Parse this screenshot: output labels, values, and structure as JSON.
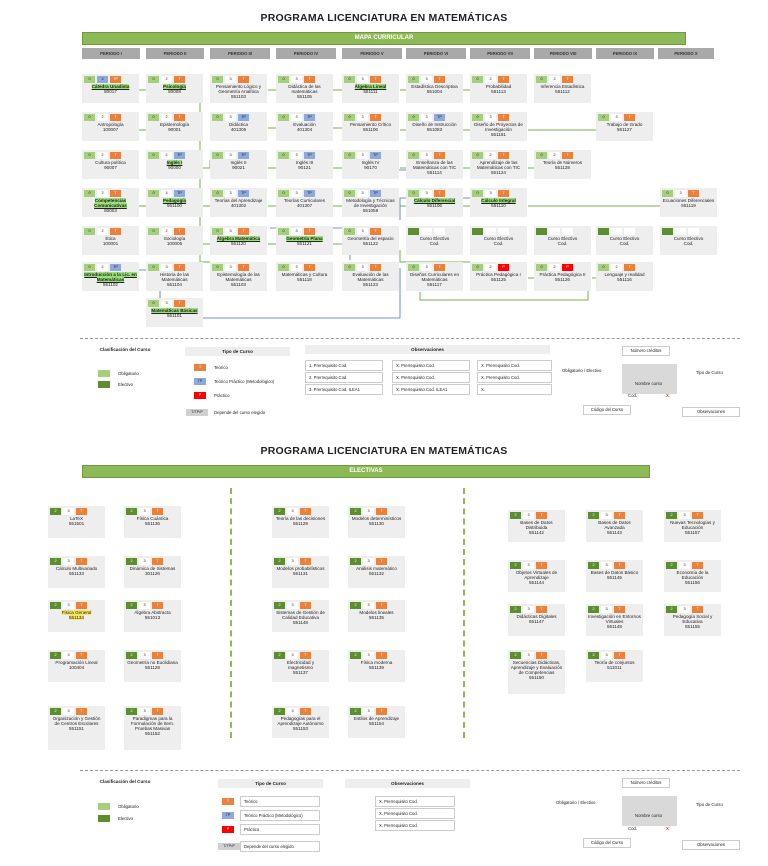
{
  "page1": {
    "title": "PROGRAMA LICENCIATURA EN MATEMÁTICAS",
    "banner": "MAPA CURRICULAR",
    "periods": [
      "PERIODO I",
      "PERIODO II",
      "PERIODO III",
      "PERIODO IV",
      "PERIODO V",
      "PERIODO VI",
      "PERIODO VII",
      "PERIODO VIII",
      "PERIODO IX",
      "PERIODO X"
    ],
    "courses": [
      {
        "name": "Cátedra Unadista",
        "code": "80017",
        "chips": [
          "0",
          "4",
          "TP"
        ],
        "t": "gbo"
      },
      {
        "name": "Antropología",
        "code": "100007",
        "chips": [
          "0",
          "2",
          "T"
        ],
        "t": "gwo"
      },
      {
        "name": "Cultura política",
        "code": "90007",
        "chips": [
          "0",
          "2",
          "T"
        ],
        "t": "gwo"
      },
      {
        "name": "Competencias Comunicativas",
        "code": "80003",
        "chips": [
          "0",
          "2",
          "T"
        ],
        "t": "gwo"
      },
      {
        "name": "Ética",
        "code": "100001",
        "chips": [
          "0",
          "2",
          "T"
        ],
        "t": "gwo"
      },
      {
        "name": "Introducción a la Lic. en Matemáticas",
        "code": "551102",
        "chips": [
          "0",
          "2",
          "TP"
        ],
        "t": "gwb"
      },
      {
        "name": "Psicología",
        "code": "80008",
        "chips": [
          "0",
          "2",
          "T"
        ],
        "t": "gwo"
      },
      {
        "name": "Epistemología",
        "code": "90001",
        "chips": [
          "0",
          "2",
          "T"
        ],
        "t": "gwo"
      },
      {
        "name": "Inglés I",
        "code": "90000",
        "chips": [
          "0",
          "2",
          "TP"
        ],
        "t": "gwb"
      },
      {
        "name": "Pedagogía",
        "code": "551100",
        "chips": [
          "0",
          "4",
          "TP"
        ],
        "t": "gwb"
      },
      {
        "name": "Sociología",
        "code": "100005",
        "chips": [
          "0",
          "2",
          "T"
        ],
        "t": "gwo"
      },
      {
        "name": "Historia de las Matemáticas",
        "code": "551104",
        "chips": [
          "0",
          "3",
          "T"
        ],
        "t": "gwo"
      },
      {
        "name": "Matemáticas Básicas",
        "code": "551101",
        "chips": [
          "0",
          "3",
          "T"
        ],
        "t": "gwo"
      },
      {
        "name": "Pensamiento Lógico y Geometría Analítica",
        "code": "551103",
        "chips": [
          "0",
          "3",
          "T"
        ],
        "t": "gwo"
      },
      {
        "name": "Didáctica",
        "code": "401305",
        "chips": [
          "0",
          "3",
          "TP"
        ],
        "t": "gwb"
      },
      {
        "name": "Inglés II",
        "code": "90021",
        "chips": [
          "0",
          "3",
          "TP"
        ],
        "t": "gwb"
      },
      {
        "name": "Teorías del Aprendizaje",
        "code": "401302",
        "chips": [
          "0",
          "3",
          "TP"
        ],
        "t": "gwb"
      },
      {
        "name": "Álgebra Matemática",
        "code": "551120",
        "chips": [
          "0",
          "3",
          "T"
        ],
        "t": "gwo"
      },
      {
        "name": "Epistemología de las Matemáticas",
        "code": "551103",
        "chips": [
          "0",
          "3",
          "T"
        ],
        "t": "gwo"
      },
      {
        "name": "Didáctica de las matemáticas",
        "code": "551105",
        "chips": [
          "0",
          "3",
          "T"
        ],
        "t": "gwo"
      },
      {
        "name": "Evaluación",
        "code": "401304",
        "chips": [
          "0",
          "3",
          "TP"
        ],
        "t": "gwb"
      },
      {
        "name": "Inglés III",
        "code": "90121",
        "chips": [
          "0",
          "3",
          "TP"
        ],
        "t": "gwb"
      },
      {
        "name": "Teorías Curriculares",
        "code": "401307",
        "chips": [
          "0",
          "3",
          "TP"
        ],
        "t": "gwb"
      },
      {
        "name": "Geometría Plana",
        "code": "551121",
        "chips": [
          "0",
          "3",
          "T"
        ],
        "t": "gwo"
      },
      {
        "name": "Matemáticas y Cultura",
        "code": "551118",
        "chips": [
          "0",
          "3",
          "T"
        ],
        "t": "gwo"
      },
      {
        "name": "Álgebra Lineal",
        "code": "551111",
        "chips": [
          "0",
          "3",
          "T"
        ],
        "t": "gwo"
      },
      {
        "name": "Pensamiento Crítico",
        "code": "551106",
        "chips": [
          "0",
          "3",
          "T"
        ],
        "t": "gwo"
      },
      {
        "name": "Inglés IV",
        "code": "90170",
        "chips": [
          "0",
          "3",
          "TP"
        ],
        "t": "gwb"
      },
      {
        "name": "Metodología y Técnicas de Investigación",
        "code": "551059",
        "chips": [
          "0",
          "3",
          "TP"
        ],
        "t": "gwb"
      },
      {
        "name": "Geometría del espacio",
        "code": "551122",
        "chips": [
          "0",
          "3",
          "T"
        ],
        "t": "gwo"
      },
      {
        "name": "Evaluación de las Matemáticas",
        "code": "551123",
        "chips": [
          "0",
          "3",
          "T"
        ],
        "t": "gwo"
      },
      {
        "name": "Estadística Descriptiva",
        "code": "551004",
        "chips": [
          "0",
          "3",
          "T"
        ],
        "t": "gwo"
      },
      {
        "name": "Diseño de Instrucción",
        "code": "551083",
        "chips": [
          "0",
          "3",
          "TP"
        ],
        "t": "gwb"
      },
      {
        "name": "Enseñanza de las Matemáticas con TIC",
        "code": "551114",
        "chips": [
          "0",
          "3",
          "T"
        ],
        "t": "gwo"
      },
      {
        "name": "Cálculo Diferencial",
        "code": "551106",
        "chips": [
          "0",
          "3",
          "T"
        ],
        "t": "gwo"
      },
      {
        "name": "Curso Electivo",
        "code": "Cod.",
        "chips": [
          "",
          "",
          ""
        ],
        "t": "dww"
      },
      {
        "name": "Diseños Curriculares en Matemáticas",
        "code": "551117",
        "chips": [
          "0",
          "3",
          "T"
        ],
        "t": "gwo"
      },
      {
        "name": "Probabilidad",
        "code": "551113",
        "chips": [
          "0",
          "2",
          "T"
        ],
        "t": "gwo"
      },
      {
        "name": "Diseño de Proyectos de Investigación",
        "code": "551181",
        "chips": [
          "0",
          "3",
          "T"
        ],
        "t": "gwo"
      },
      {
        "name": "Aprendizaje de las Matemáticas con TIC",
        "code": "551124",
        "chips": [
          "0",
          "2",
          "T"
        ],
        "t": "gwo"
      },
      {
        "name": "Cálculo Integral",
        "code": "551110",
        "chips": [
          "0",
          "3",
          "T"
        ],
        "t": "gwo"
      },
      {
        "name": "Curso Electivo",
        "code": "Cod.",
        "chips": [
          "",
          "",
          ""
        ],
        "t": "dww"
      },
      {
        "name": "Práctica Pedagógica I",
        "code": "551125",
        "chips": [
          "0",
          "2",
          "P"
        ],
        "t": "gwr"
      },
      {
        "name": "Inferencia Estadística",
        "code": "551112",
        "chips": [
          "0",
          "2",
          "T"
        ],
        "t": "gwo"
      },
      {
        "name": "Teoría de Números",
        "code": "551128",
        "chips": [
          "0",
          "2",
          "T"
        ],
        "t": "gwo"
      },
      {
        "name": "Curso Electivo",
        "code": "Cod.",
        "chips": [
          "",
          "",
          ""
        ],
        "t": "dww"
      },
      {
        "name": "Práctica Pedagógica II",
        "code": "551126",
        "chips": [
          "0",
          "2",
          "P"
        ],
        "t": "gwr"
      },
      {
        "name": "Trabajo de Grado",
        "code": "551127",
        "chips": [
          "0",
          "3",
          "T"
        ],
        "t": "gwo"
      },
      {
        "name": "Curso Electivo",
        "code": "Cod.",
        "chips": [
          "",
          "",
          ""
        ],
        "t": "dww"
      },
      {
        "name": "Lenguaje y realidad",
        "code": "551116",
        "chips": [
          "0",
          "2",
          "T"
        ],
        "t": "gwo"
      },
      {
        "name": "Ecuaciones Diferenciales",
        "code": "551119",
        "chips": [
          "0",
          "3",
          "T"
        ],
        "t": "gwo"
      },
      {
        "name": "Curso Electivo",
        "code": "Cod.",
        "chips": [
          "",
          "",
          ""
        ],
        "t": "dww"
      }
    ],
    "legend": {
      "clasificacion_title": "Clasificación del Curso",
      "obligatorio": "Obligatorio",
      "electivo": "Electivo",
      "tipo_title": "Tipo de Curso",
      "teorico": "Teórico",
      "tp": "Teórico Práctico (Metodológico)",
      "practico": "Práctico",
      "tp_chip": "TP",
      "t_chip": "T",
      "p_chip": "P",
      "tpp_chip": "T/TP/P",
      "depende": "Depende del curso elegido",
      "obs_title": "Observaciones",
      "obs_col1": [
        "1. Prerrequisito Cod.",
        "2. Prerrequisito Cod.",
        "3. Prerrequisito Cod. ILEA1"
      ],
      "obs_col2": [
        "X. Prerrequisito Cod.",
        "X. Prerrequisito Cod.",
        "X. Prerrequisito Cod. ILEA1"
      ],
      "obs_col3": [
        "X. Prerrequisito Cod.",
        "X. Prerrequisito Cod.",
        "X."
      ],
      "diagram": {
        "creditos": "Número créditos",
        "oblig": "Obligatorio / Electivo",
        "tipo": "Tipo de Curso",
        "nombre": "Nombre curso",
        "cod": "Cod.",
        "codigo": "Código del Curso",
        "obs": "Observaciones",
        "x": "X"
      }
    }
  },
  "page2": {
    "title": "PROGRAMA LICENCIATURA EN MATEMÁTICAS",
    "banner": "ELECTIVAS",
    "courses": [
      {
        "name": "LaTeX",
        "code": "551501",
        "t": "dwo"
      },
      {
        "name": "Cálculo Multivariado",
        "code": "551133",
        "t": "dwo"
      },
      {
        "name": "Física General",
        "code": "551134",
        "t": "dwo"
      },
      {
        "name": "Programación Lineal",
        "code": "100404",
        "t": "dwo"
      },
      {
        "name": "Organización y Gestión de Centros Escolares",
        "code": "551151",
        "t": "dwo"
      },
      {
        "name": "Física Cuántica",
        "code": "551136",
        "t": "dwo"
      },
      {
        "name": "Dinámica de Sistemas",
        "code": "301126",
        "t": "dwo"
      },
      {
        "name": "Álgebra Abstracta",
        "code": "551013",
        "t": "dwo"
      },
      {
        "name": "Geometría no Euclidiana",
        "code": "551128",
        "t": "dwo"
      },
      {
        "name": "Paradigmas para la Formulación de Item. Pruebas Masivas",
        "code": "551152",
        "t": "dwo"
      },
      {
        "name": "Teoría de las decisiones",
        "code": "551129",
        "t": "dwo"
      },
      {
        "name": "Modelos probabilísticos",
        "code": "551131",
        "t": "dwo"
      },
      {
        "name": "Sistemas de Gestión de Calidad Educativa",
        "code": "551148",
        "t": "dwo"
      },
      {
        "name": "Electricidad y magnetismo",
        "code": "551137",
        "t": "dwo"
      },
      {
        "name": "Pedagogías para el Aprendizaje Autónomo",
        "code": "551153",
        "t": "dwo"
      },
      {
        "name": "Modelos determinísticos",
        "code": "551130",
        "t": "dwo"
      },
      {
        "name": "Análisis matemático",
        "code": "551132",
        "t": "dwo"
      },
      {
        "name": "Modelos lineales",
        "code": "551135",
        "t": "dwo"
      },
      {
        "name": "Física moderna",
        "code": "551139",
        "t": "dwo"
      },
      {
        "name": "Estilos de Aprendizaje",
        "code": "551154",
        "t": "dwo"
      },
      {
        "name": "Bases de Datos Distribuida",
        "code": "551142",
        "t": "dwo"
      },
      {
        "name": "Objetos Virtuales de Aprendizaje",
        "code": "551144",
        "t": "dwo"
      },
      {
        "name": "Didácticas Digitales",
        "code": "551147",
        "t": "dwo"
      },
      {
        "name": "Secuencias Didácticas, Aprendizaje y Evaluación de Competencias",
        "code": "551150",
        "t": "dwo"
      },
      {
        "name": "Bases de Datos Avanzada",
        "code": "551143",
        "t": "dwo"
      },
      {
        "name": "Bases de Datos Básico",
        "code": "551145",
        "t": "dwo"
      },
      {
        "name": "Investigación en Entornos Virtuales",
        "code": "551148",
        "t": "dwo"
      },
      {
        "name": "Teoría de conjuntos",
        "code": "511011",
        "t": "dwo"
      },
      {
        "name": "Nuevas Tecnologías y Educación",
        "code": "551157",
        "t": "dwo"
      },
      {
        "name": "Economía de la Educación",
        "code": "551156",
        "t": "dwo"
      },
      {
        "name": "Pedagogía Social y Educativa",
        "code": "551155",
        "t": "dwo"
      }
    ],
    "chips": [
      "2",
      "3",
      "T"
    ],
    "legend": {
      "clasificacion_title": "Clasificación del Curso",
      "obligatorio": "Obligatorio",
      "electivo": "Electivo",
      "tipo_title": "Tipo de Curso",
      "teorico": "Teórico",
      "tp": "Teórico Práctico (Metodológico)",
      "practico": "Práctico",
      "depende": "Depende del curso elegido",
      "t_chip": "T",
      "tp_chip": "TP",
      "p_chip": "P",
      "tpp_chip": "T/TP/P",
      "obs_title": "Observaciones",
      "obs": [
        "X. Prerrequisito Cod.",
        "X. Prerrequisito Cod.",
        "X. Prerrequisito Cod."
      ],
      "diagram": {
        "creditos": "Número créditos",
        "oblig": "Obligatorio / Electivo",
        "tipo": "Tipo de Curso",
        "nombre": "Nombre curso",
        "cod": "Cod.",
        "codigo": "Código del Curso",
        "obs": "Observaciones",
        "x": "X"
      }
    }
  }
}
